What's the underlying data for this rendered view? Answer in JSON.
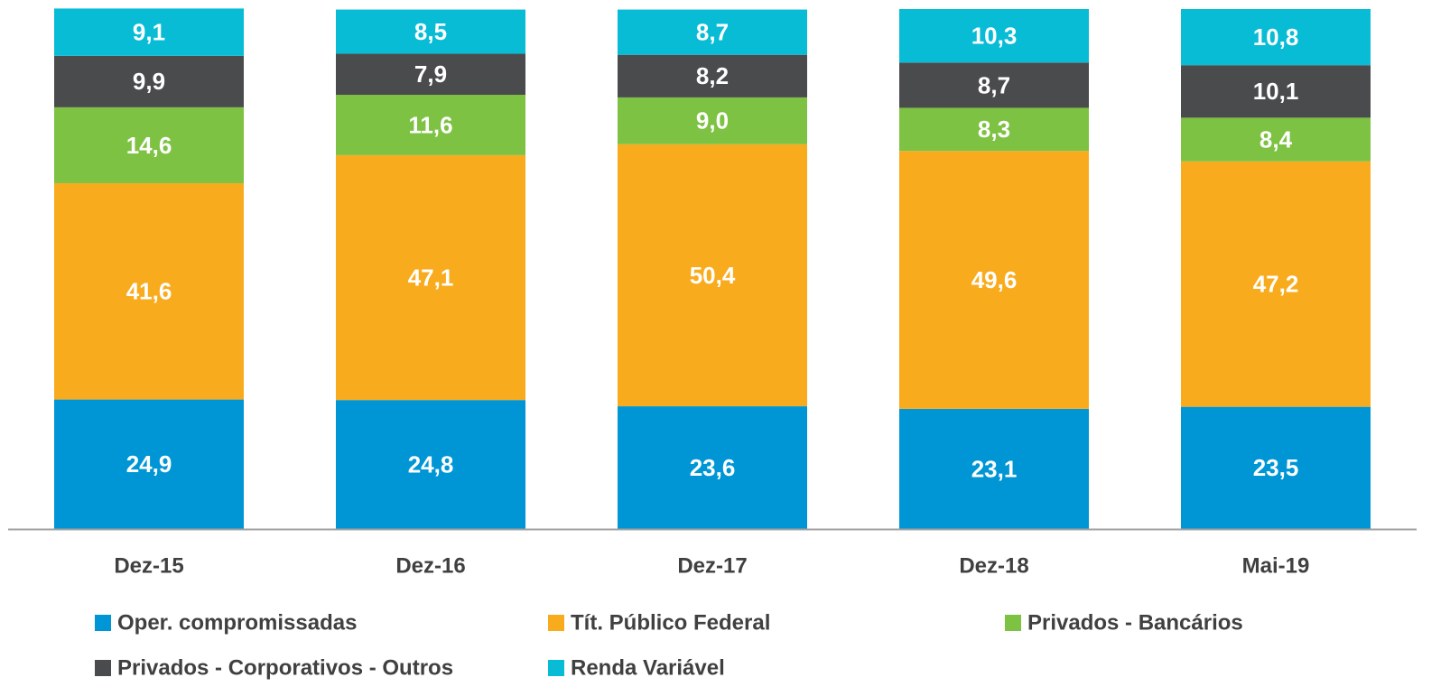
{
  "chart_data": {
    "type": "stacked_bar",
    "categories": [
      "Dez-15",
      "Dez-16",
      "Dez-17",
      "Dez-18",
      "Mai-19"
    ],
    "ylim": [
      0,
      100
    ],
    "series": [
      {
        "name": "Oper. compromissadas",
        "color": "#0096d6",
        "values": [
          24.9,
          24.8,
          23.6,
          23.1,
          23.5
        ],
        "value_labels": [
          "24,9",
          "24,8",
          "23,6",
          "23,1",
          "23,5"
        ]
      },
      {
        "name": "Tít. Público Federal",
        "color": "#f9ab1e",
        "values": [
          41.6,
          47.1,
          50.4,
          49.6,
          47.2
        ],
        "value_labels": [
          "41,6",
          "47,1",
          "50,4",
          "49,6",
          "47,2"
        ]
      },
      {
        "name": "Privados - Bancários",
        "color": "#7dc242",
        "values": [
          14.6,
          11.6,
          9.0,
          8.3,
          8.4
        ],
        "value_labels": [
          "14,6",
          "11,6",
          "9,0",
          "8,3",
          "8,4"
        ]
      },
      {
        "name": "Privados - Corporativos - Outros",
        "color": "#4a4b4d",
        "values": [
          9.9,
          7.9,
          8.2,
          8.7,
          10.1
        ],
        "value_labels": [
          "9,9",
          "7,9",
          "8,2",
          "8,7",
          "10,1"
        ]
      },
      {
        "name": "Renda Variável",
        "color": "#08bcd6",
        "values": [
          9.1,
          8.5,
          8.7,
          10.3,
          10.8
        ],
        "value_labels": [
          "9,1",
          "8,5",
          "8,7",
          "10,3",
          "10,8"
        ]
      }
    ]
  }
}
